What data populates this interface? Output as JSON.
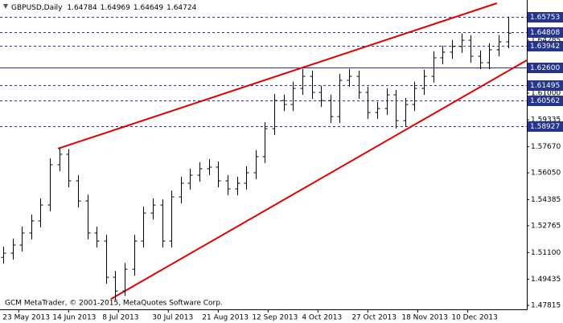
{
  "chart_data": {
    "type": "ohlc",
    "symbol": "GBPUSD,Daily",
    "quote": [
      1.64784,
      1.64969,
      1.64649,
      1.64724
    ],
    "footer": "GCM MetaTrader, © 2001-2015, MetaQuotes Software Corp.",
    "color": "#000000",
    "x": [
      0,
      3,
      6,
      9,
      12,
      15,
      18,
      21,
      24,
      27,
      30,
      33,
      36,
      39,
      42,
      45,
      48,
      51,
      54,
      57,
      60,
      63,
      66,
      69,
      72,
      75,
      78,
      81,
      84,
      87,
      90,
      93,
      96,
      99,
      102,
      105,
      108,
      111,
      114,
      117,
      120,
      123,
      126,
      129,
      132,
      135,
      138,
      141,
      144,
      147,
      150,
      153,
      156,
      159,
      162
    ],
    "open": [
      1.508,
      1.5106,
      1.5156,
      1.5231,
      1.5306,
      1.5405,
      1.5655,
      1.572,
      1.5555,
      1.543,
      1.5231,
      1.5181,
      1.4956,
      1.4871,
      1.5006,
      1.5181,
      1.5355,
      1.5405,
      1.5181,
      1.5455,
      1.554,
      1.559,
      1.563,
      1.564,
      1.5555,
      1.5505,
      1.554,
      1.5605,
      1.5705,
      1.5879,
      1.6054,
      1.6029,
      1.6129,
      1.6204,
      1.6104,
      1.6054,
      1.5954,
      1.6179,
      1.6204,
      1.6104,
      1.5979,
      1.6004,
      1.6089,
      1.5929,
      1.6029,
      1.6129,
      1.6204,
      1.6319,
      1.6354,
      1.6389,
      1.6428,
      1.6329,
      1.6289,
      1.6369,
      1.6418
    ],
    "high": [
      1.5146,
      1.5196,
      1.5271,
      1.5346,
      1.5445,
      1.5695,
      1.576,
      1.5752,
      1.559,
      1.547,
      1.527,
      1.522,
      1.4995,
      1.5045,
      1.522,
      1.5395,
      1.5445,
      1.544,
      1.5495,
      1.558,
      1.563,
      1.567,
      1.569,
      1.5675,
      1.559,
      1.558,
      1.5645,
      1.5745,
      1.592,
      1.6095,
      1.609,
      1.617,
      1.625,
      1.624,
      1.6145,
      1.609,
      1.622,
      1.625,
      1.624,
      1.614,
      1.6045,
      1.613,
      1.612,
      1.607,
      1.617,
      1.6245,
      1.636,
      1.6395,
      1.643,
      1.647,
      1.646,
      1.6365,
      1.641,
      1.646,
      1.6575
    ],
    "low": [
      1.504,
      1.5066,
      1.5116,
      1.5191,
      1.5266,
      1.5365,
      1.5615,
      1.5515,
      1.539,
      1.5191,
      1.5141,
      1.4916,
      1.4815,
      1.484,
      1.4966,
      1.5141,
      1.5315,
      1.5141,
      1.5141,
      1.5415,
      1.55,
      1.555,
      1.559,
      1.5515,
      1.5465,
      1.5465,
      1.55,
      1.5565,
      1.5665,
      1.5839,
      1.5989,
      1.5989,
      1.6089,
      1.6064,
      1.6014,
      1.5914,
      1.5914,
      1.6139,
      1.6064,
      1.5939,
      1.5939,
      1.5964,
      1.588,
      1.5889,
      1.5989,
      1.6089,
      1.6164,
      1.6279,
      1.6314,
      1.6349,
      1.6289,
      1.6249,
      1.6249,
      1.6329,
      1.6378
    ],
    "close": [
      1.5106,
      1.5156,
      1.5231,
      1.5306,
      1.5405,
      1.5655,
      1.572,
      1.5555,
      1.543,
      1.5231,
      1.5181,
      1.4956,
      1.4871,
      1.5006,
      1.5181,
      1.5355,
      1.5405,
      1.5181,
      1.5455,
      1.554,
      1.559,
      1.563,
      1.564,
      1.5555,
      1.5505,
      1.554,
      1.5605,
      1.5705,
      1.5879,
      1.6054,
      1.6029,
      1.6129,
      1.6204,
      1.6104,
      1.6054,
      1.5954,
      1.6179,
      1.6204,
      1.6104,
      1.5979,
      1.6004,
      1.6089,
      1.5929,
      1.6029,
      1.6129,
      1.6204,
      1.6319,
      1.6354,
      1.6389,
      1.6428,
      1.6329,
      1.6289,
      1.6369,
      1.6418,
      1.6472
    ],
    "xlim": [
      -1,
      168
    ],
    "xticks": [
      {
        "value": 5,
        "label": "23 May 2013"
      },
      {
        "value": 21,
        "label": "14 Jun 2013"
      },
      {
        "value": 37,
        "label": "8 Jul 2013"
      },
      {
        "value": 53,
        "label": "30 Jul 2013"
      },
      {
        "value": 69,
        "label": "21 Aug 2013"
      },
      {
        "value": 85,
        "label": "12 Sep 2013"
      },
      {
        "value": 101,
        "label": "4 Oct 2013"
      },
      {
        "value": 117,
        "label": "27 Oct 2013"
      },
      {
        "value": 133,
        "label": "18 Nov 2013"
      },
      {
        "value": 149,
        "label": "10 Dec 2013"
      }
    ],
    "ylim": [
      1.4757,
      1.6678
    ],
    "yticks": [
      1.47815,
      1.49435,
      {
        "value": 1.511,
        "label": "1.51100"
      },
      1.52765,
      1.54385,
      {
        "value": 1.5605,
        "label": "1.56050"
      },
      {
        "value": 1.5767,
        "label": "1.57670"
      },
      1.59335,
      {
        "value": 1.61,
        "label": "1.61000"
      },
      1.64285
    ],
    "levels": [
      1.65753,
      1.64808,
      1.63942,
      {
        "value": 1.626,
        "label": "1.62600",
        "style": "solid"
      },
      1.61495,
      1.60562,
      1.58927
    ],
    "level_color": "#26358c",
    "trendlines": [
      {
        "color": "#e00000",
        "points": [
          {
            "x": 17.6,
            "y": 1.5755
          },
          {
            "x": 158.4,
            "y": 1.6658
          }
        ]
      },
      {
        "color": "#e00000",
        "points": [
          {
            "x": 34.6,
            "y": 1.4821
          },
          {
            "x": 168,
            "y": 1.6304
          }
        ]
      }
    ]
  }
}
